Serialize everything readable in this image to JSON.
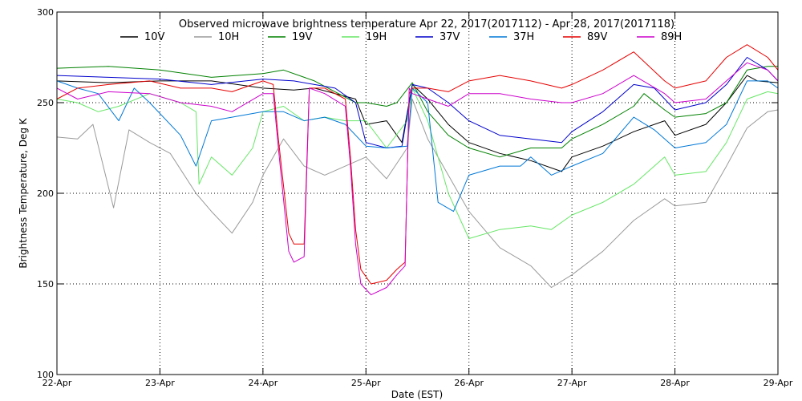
{
  "chart_data": {
    "type": "line",
    "title": "Observed microwave brightness temperature Apr 22, 2017(2017112) - Apr 28, 2017(2017118)",
    "xlabel": "Date (EST)",
    "ylabel": "Brightness Temperature, Deg K",
    "xlim": [
      0,
      7
    ],
    "ylim": [
      100,
      300
    ],
    "x_ticks": [
      {
        "value": 0,
        "label": "22-Apr"
      },
      {
        "value": 1,
        "label": "23-Apr"
      },
      {
        "value": 2,
        "label": "24-Apr"
      },
      {
        "value": 3,
        "label": "25-Apr"
      },
      {
        "value": 4,
        "label": "26-Apr"
      },
      {
        "value": 5,
        "label": "27-Apr"
      },
      {
        "value": 6,
        "label": "28-Apr"
      },
      {
        "value": 7,
        "label": "29-Apr"
      }
    ],
    "y_ticks": [
      {
        "value": 100,
        "label": "100"
      },
      {
        "value": 150,
        "label": "150"
      },
      {
        "value": 200,
        "label": "200"
      },
      {
        "value": 250,
        "label": "250"
      },
      {
        "value": 300,
        "label": "300"
      }
    ],
    "grid": "dotted",
    "legend_position": "top",
    "series": [
      {
        "name": "10V",
        "color": "#000000",
        "x": [
          0,
          0.5,
          1,
          1.5,
          2,
          2.3,
          2.5,
          2.9,
          3.0,
          3.2,
          3.35,
          3.45,
          3.6,
          3.8,
          4.0,
          4.3,
          4.6,
          4.9,
          5.0,
          5.3,
          5.6,
          5.9,
          6.0,
          6.3,
          6.5,
          6.7,
          6.8,
          7.0
        ],
        "y": [
          262,
          261,
          262,
          262,
          258,
          257,
          258,
          252,
          238,
          240,
          228,
          260,
          252,
          238,
          228,
          222,
          218,
          212,
          220,
          226,
          234,
          240,
          232,
          238,
          250,
          265,
          262,
          261
        ]
      },
      {
        "name": "10H",
        "color": "#9a9a9a",
        "x": [
          0,
          0.2,
          0.35,
          0.55,
          0.7,
          0.9,
          1.1,
          1.35,
          1.5,
          1.7,
          1.9,
          2.0,
          2.2,
          2.4,
          2.6,
          2.8,
          3.0,
          3.2,
          3.4,
          3.45,
          3.6,
          3.8,
          4.0,
          4.3,
          4.6,
          4.8,
          5.0,
          5.3,
          5.6,
          5.9,
          6.0,
          6.3,
          6.5,
          6.7,
          6.9,
          7.0
        ],
        "y": [
          231,
          230,
          238,
          192,
          235,
          228,
          222,
          200,
          190,
          178,
          195,
          210,
          230,
          215,
          210,
          215,
          220,
          208,
          225,
          252,
          230,
          210,
          190,
          170,
          160,
          148,
          155,
          168,
          185,
          197,
          193,
          195,
          215,
          236,
          245,
          246
        ]
      },
      {
        "name": "19V",
        "color": "#008000",
        "x": [
          0,
          0.5,
          1.0,
          1.5,
          2.0,
          2.2,
          2.5,
          2.9,
          3.0,
          3.2,
          3.3,
          3.45,
          3.6,
          3.8,
          4.0,
          4.3,
          4.6,
          4.9,
          5.0,
          5.3,
          5.6,
          5.7,
          5.9,
          6.0,
          6.3,
          6.5,
          6.7,
          6.9,
          7.0
        ],
        "y": [
          269,
          270,
          268,
          264,
          266,
          268,
          262,
          250,
          250,
          248,
          250,
          261,
          245,
          232,
          225,
          220,
          225,
          225,
          230,
          238,
          248,
          255,
          246,
          242,
          244,
          250,
          268,
          270,
          270
        ]
      },
      {
        "name": "19H",
        "color": "#66e666",
        "x": [
          0,
          0.2,
          0.4,
          0.6,
          0.9,
          1.2,
          1.35,
          1.38,
          1.5,
          1.7,
          1.9,
          2.0,
          2.2,
          2.4,
          2.6,
          2.8,
          3.0,
          3.2,
          3.4,
          3.45,
          3.6,
          3.8,
          4.0,
          4.3,
          4.6,
          4.8,
          5.0,
          5.3,
          5.6,
          5.9,
          6.0,
          6.3,
          6.5,
          6.7,
          6.9,
          7.0
        ],
        "y": [
          252,
          250,
          245,
          248,
          255,
          250,
          245,
          205,
          220,
          210,
          225,
          245,
          248,
          240,
          242,
          240,
          240,
          225,
          240,
          258,
          240,
          200,
          175,
          180,
          182,
          180,
          188,
          195,
          205,
          220,
          210,
          212,
          228,
          252,
          256,
          255
        ]
      },
      {
        "name": "37V",
        "color": "#0000cc",
        "x": [
          0,
          0.5,
          1.0,
          1.5,
          2.0,
          2.3,
          2.5,
          2.7,
          2.9,
          3.0,
          3.2,
          3.35,
          3.45,
          3.6,
          3.8,
          4.0,
          4.3,
          4.6,
          4.9,
          5.0,
          5.3,
          5.6,
          5.8,
          6.0,
          6.3,
          6.5,
          6.7,
          6.9,
          7.0
        ],
        "y": [
          265,
          264,
          263,
          260,
          263,
          262,
          260,
          258,
          250,
          228,
          225,
          226,
          260,
          258,
          250,
          240,
          232,
          230,
          228,
          234,
          245,
          260,
          258,
          246,
          250,
          260,
          275,
          268,
          262
        ]
      },
      {
        "name": "37H",
        "color": "#0078d7",
        "x": [
          0,
          0.2,
          0.4,
          0.6,
          0.75,
          0.9,
          1.2,
          1.35,
          1.5,
          1.7,
          2.0,
          2.2,
          2.4,
          2.6,
          2.8,
          3.0,
          3.2,
          3.4,
          3.45,
          3.6,
          3.7,
          3.85,
          4.0,
          4.3,
          4.5,
          4.6,
          4.8,
          5.0,
          5.3,
          5.6,
          5.8,
          6.0,
          6.3,
          6.5,
          6.7,
          6.9,
          7.0
        ],
        "y": [
          262,
          258,
          255,
          240,
          258,
          250,
          232,
          215,
          240,
          242,
          245,
          245,
          240,
          242,
          238,
          226,
          225,
          226,
          258,
          250,
          195,
          190,
          210,
          215,
          215,
          220,
          210,
          215,
          222,
          242,
          235,
          225,
          228,
          238,
          262,
          262,
          258
        ]
      },
      {
        "name": "89V",
        "color": "#e60000",
        "x": [
          0,
          0.2,
          0.5,
          0.9,
          1.2,
          1.5,
          1.7,
          2.0,
          2.1,
          2.15,
          2.25,
          2.3,
          2.4,
          2.45,
          2.6,
          2.8,
          2.85,
          2.9,
          2.95,
          3.05,
          3.2,
          3.3,
          3.38,
          3.42,
          3.45,
          3.6,
          3.8,
          4.0,
          4.3,
          4.6,
          4.9,
          5.0,
          5.3,
          5.6,
          5.9,
          6.0,
          6.3,
          6.5,
          6.7,
          6.9,
          7.0
        ],
        "y": [
          252,
          258,
          260,
          262,
          258,
          258,
          256,
          262,
          260,
          230,
          178,
          172,
          172,
          258,
          258,
          252,
          220,
          180,
          158,
          150,
          152,
          158,
          162,
          255,
          258,
          258,
          256,
          262,
          265,
          262,
          258,
          260,
          268,
          278,
          262,
          258,
          262,
          275,
          282,
          275,
          268
        ]
      },
      {
        "name": "89H",
        "color": "#cc00cc",
        "x": [
          0,
          0.2,
          0.5,
          0.9,
          1.2,
          1.5,
          1.7,
          2.0,
          2.1,
          2.15,
          2.25,
          2.3,
          2.4,
          2.45,
          2.6,
          2.8,
          2.85,
          2.9,
          2.95,
          3.05,
          3.2,
          3.3,
          3.38,
          3.42,
          3.45,
          3.6,
          3.8,
          4.0,
          4.3,
          4.6,
          4.9,
          5.0,
          5.3,
          5.6,
          5.9,
          6.0,
          6.3,
          6.5,
          6.7,
          6.9,
          7.0
        ],
        "y": [
          258,
          252,
          256,
          255,
          250,
          248,
          245,
          255,
          255,
          225,
          168,
          162,
          165,
          258,
          255,
          248,
          215,
          172,
          150,
          144,
          148,
          155,
          160,
          258,
          255,
          252,
          248,
          255,
          255,
          252,
          250,
          250,
          255,
          265,
          255,
          250,
          252,
          262,
          272,
          268,
          262
        ]
      }
    ]
  }
}
